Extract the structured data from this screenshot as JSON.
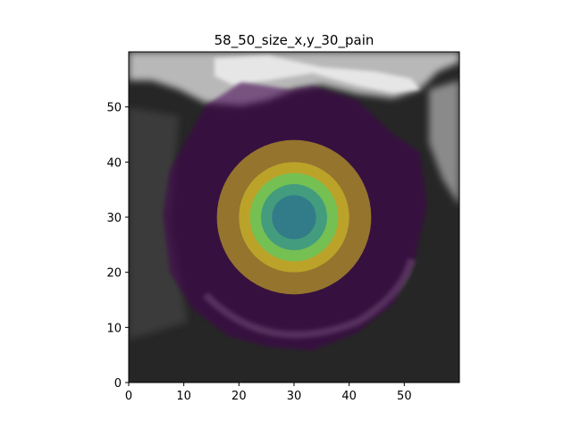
{
  "chart_data": {
    "type": "heatmap",
    "title": "58_50_size_x,y_30_pain",
    "xlabel": "",
    "ylabel": "",
    "xlim": [
      0,
      60
    ],
    "ylim": [
      0,
      60
    ],
    "x_ticks": [
      0,
      10,
      20,
      30,
      40,
      50
    ],
    "y_ticks": [
      0,
      10,
      20,
      30,
      40,
      50
    ],
    "x_tick_labels": [
      "0",
      "10",
      "20",
      "30",
      "40",
      "50"
    ],
    "y_tick_labels": [
      "0",
      "10",
      "20",
      "30",
      "40",
      "50"
    ],
    "grid": false,
    "colormap": "viridis",
    "overlay_alpha": 0.5,
    "background": "grayscale CT slice",
    "heatmap_center": [
      30,
      30
    ],
    "heatmap_rings": [
      {
        "radius": 4,
        "color": "#2c728e"
      },
      {
        "radius": 6,
        "color": "#33908c"
      },
      {
        "radius": 8,
        "color": "#5ec962"
      },
      {
        "radius": 10,
        "color": "#c8b32a"
      },
      {
        "radius": 14,
        "color": "#b5952a"
      }
    ],
    "low_value_region_color": "#440154"
  }
}
